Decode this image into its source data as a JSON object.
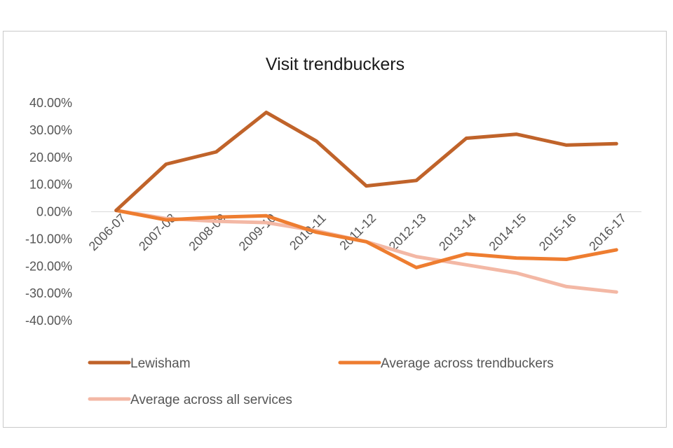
{
  "chart_data": {
    "type": "line",
    "title": "Visit trendbuckers",
    "xlabel": "",
    "ylabel": "",
    "categories": [
      "2006-07",
      "2007-08",
      "2008-09",
      "2009-10",
      "2010-11",
      "2011-12",
      "2012-13",
      "2013-14",
      "2014-15",
      "2015-16",
      "2016-17"
    ],
    "ylim": [
      -40,
      40
    ],
    "yticks": [
      40,
      30,
      20,
      10,
      0,
      -10,
      -20,
      -30,
      -40
    ],
    "ytick_labels": [
      "40.00%",
      "30.00%",
      "20.00%",
      "10.00%",
      "0.00%",
      "-10.00%",
      "-20.00%",
      "-30.00%",
      "-40.00%"
    ],
    "grid": false,
    "legend_position": "bottom",
    "series": [
      {
        "name": "Lewisham",
        "color": "#c0632a",
        "values": [
          0.5,
          17.5,
          22,
          36.5,
          26,
          9.5,
          11.5,
          27,
          28.5,
          24.5,
          25
        ]
      },
      {
        "name": "Average across trendbuckers",
        "color": "#ee7d30",
        "values": [
          0.5,
          -3,
          -2,
          -1.5,
          -7.5,
          -11,
          -20.5,
          -15.5,
          -17,
          -17.5,
          -14
        ]
      },
      {
        "name": "Average across all services",
        "color": "#f3b8a5",
        "values": [
          0.5,
          -2.5,
          -3.5,
          -4,
          -7,
          -11,
          -16.5,
          -19.5,
          -22.5,
          -27.5,
          -29.5
        ]
      }
    ]
  }
}
